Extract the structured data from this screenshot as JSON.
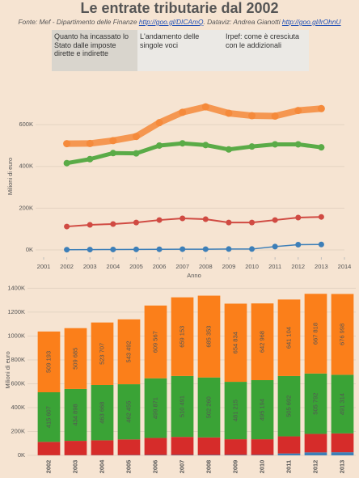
{
  "header": {
    "title": "Le entrate tributarie dal 2002",
    "source": "Fonte: Mef - Dipartimento delle Finanze ",
    "source_link": "http://goo.gl/DICAmQ",
    "dataviz": ". Dataviz: Andrea Gianotti ",
    "dataviz_link": "http://goo.gl/lrOhnU"
  },
  "tabs": [
    "Quanto ha incassato lo Stato dalle imposte dirette e indirette",
    "L'andamento delle singole voci",
    "Irpef: come è cresciuta con le addizionali"
  ],
  "chart_data": [
    {
      "type": "line",
      "x_label": "Anno",
      "y_label": "Milioni di euro",
      "x": [
        2002,
        2003,
        2004,
        2005,
        2006,
        2007,
        2008,
        2009,
        2010,
        2011,
        2012,
        2013
      ],
      "xlim": [
        2001,
        2014
      ],
      "xticks": [
        2001,
        2002,
        2003,
        2004,
        2005,
        2006,
        2007,
        2008,
        2009,
        2010,
        2011,
        2012,
        2013,
        2014
      ],
      "ylim": [
        -35000,
        740000
      ],
      "yticks": [
        {
          "value": 0,
          "label": "0K"
        },
        {
          "value": 200000,
          "label": "200K"
        },
        {
          "value": 400000,
          "label": "400K"
        },
        {
          "value": 600000,
          "label": "600K"
        }
      ],
      "grid": true,
      "series": [
        {
          "color": "#f58a3b",
          "values": [
            509193,
            509685,
            523707,
            543492,
            609567,
            659153,
            685353,
            654834,
            642968,
            641104,
            667818,
            676998
          ]
        },
        {
          "color": "#5aab47",
          "values": [
            415607,
            434898,
            463668,
            462455,
            499871,
            510491,
            502260,
            481215,
            495194,
            505692,
            505792,
            491314
          ]
        },
        {
          "color": "#d04a42",
          "values": [
            112000,
            120000,
            124000,
            131000,
            143000,
            151000,
            147000,
            131000,
            131000,
            143000,
            155000,
            158000
          ]
        },
        {
          "color": "#3d7fb8",
          "values": [
            1000,
            1500,
            2000,
            2500,
            3000,
            3500,
            3500,
            4000,
            4000,
            16000,
            25000,
            26000
          ]
        }
      ]
    },
    {
      "type": "bar",
      "stacked": true,
      "y_label": "Milioni di euro",
      "categories": [
        "2002",
        "2003",
        "2004",
        "2005",
        "2006",
        "2007",
        "2008",
        "2009",
        "2010",
        "2011",
        "2012",
        "2013"
      ],
      "ylim": [
        0,
        1430000
      ],
      "yticks": [
        {
          "value": 0,
          "label": "0K"
        },
        {
          "value": 200000,
          "label": "200K"
        },
        {
          "value": 400000,
          "label": "400K"
        },
        {
          "value": 600000,
          "label": "600K"
        },
        {
          "value": 800000,
          "label": "800K"
        },
        {
          "value": 1000000,
          "label": "1000K"
        },
        {
          "value": 1200000,
          "label": "1200K"
        },
        {
          "value": 1400000,
          "label": "1400K"
        }
      ],
      "grid": true,
      "series": [
        {
          "color": "#3d7fb8",
          "values": [
            1000,
            1500,
            2000,
            2500,
            3000,
            3500,
            3500,
            4000,
            4000,
            16000,
            25000,
            26000
          ]
        },
        {
          "color": "#d62c2a",
          "values": [
            112000,
            120000,
            124000,
            131000,
            143000,
            151000,
            147000,
            131000,
            131000,
            143000,
            155000,
            158000
          ]
        },
        {
          "color": "#3aa336",
          "values": [
            415607,
            434898,
            463668,
            462455,
            499871,
            510491,
            502260,
            481215,
            495194,
            505692,
            505792,
            491314
          ],
          "value_labels": [
            "415 607",
            "434 898",
            "463 668",
            "462 455",
            "499 871",
            "510 491",
            "502 260",
            "481 215",
            "495 194",
            "505 692",
            "505 792",
            "491 314"
          ]
        },
        {
          "color": "#fb7f1a",
          "values": [
            509193,
            509685,
            523707,
            543492,
            609567,
            659153,
            685353,
            654834,
            642968,
            641104,
            667818,
            676998
          ],
          "value_labels": [
            "509 193",
            "509 685",
            "523 707",
            "543 492",
            "609 567",
            "659 153",
            "685 353",
            "654 834",
            "642 968",
            "641 104",
            "667 818",
            "676 998"
          ]
        }
      ]
    }
  ]
}
